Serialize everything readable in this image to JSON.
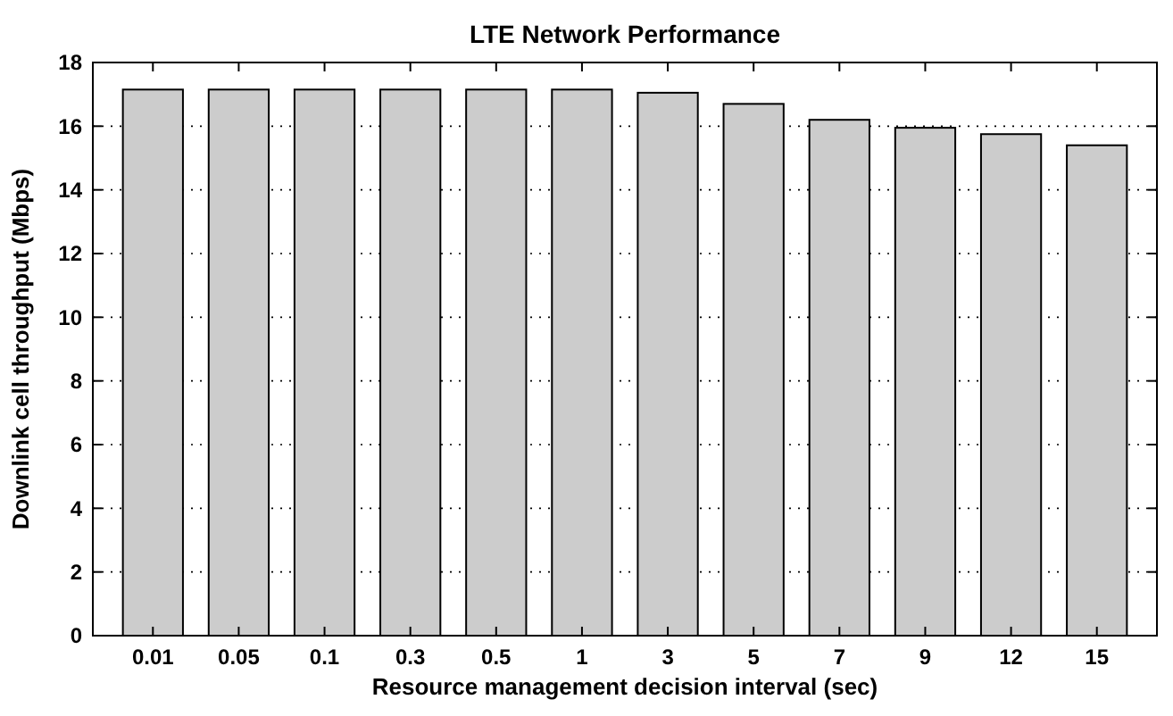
{
  "chart_data": {
    "type": "bar",
    "title": "LTE Network Performance",
    "xlabel": "Resource management decision interval (sec)",
    "ylabel": "Downlink cell throughput (Mbps)",
    "categories": [
      "0.01",
      "0.05",
      "0.1",
      "0.3",
      "0.5",
      "1",
      "3",
      "5",
      "7",
      "9",
      "12",
      "15"
    ],
    "values": [
      17.15,
      17.15,
      17.15,
      17.15,
      17.15,
      17.15,
      17.05,
      16.7,
      16.2,
      15.95,
      15.75,
      15.4
    ],
    "color": "#cccccc",
    "ylim": [
      0,
      18
    ],
    "yticks": [
      0,
      2,
      4,
      6,
      8,
      10,
      12,
      14,
      16,
      18
    ],
    "grid": "y"
  }
}
